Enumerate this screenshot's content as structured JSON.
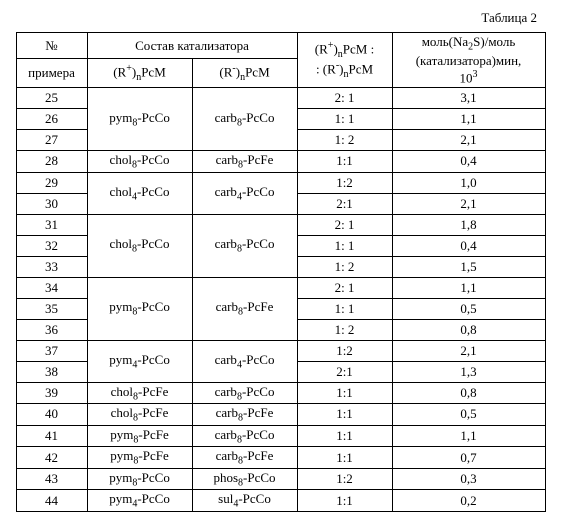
{
  "caption": "Таблица 2",
  "header": {
    "num_top": "№",
    "num_bottom": "примера",
    "composition": "Состав катализатора",
    "r_plus": "(R⁺)ₙPcM",
    "r_minus": "(R⁻)ₙPcM",
    "ratio_top": "(R⁺)ₙPcM :",
    "ratio_bottom": ": (R⁻)ₙPcM",
    "mol_top": "моль(Na₂S)/моль",
    "mol_mid": "(катализатора)мин,",
    "mol_bot": "10³"
  },
  "groups": [
    {
      "rPlus": "pym₈-PcCo",
      "rMinus": "carb₈-PcCo",
      "rows": [
        {
          "n": "25",
          "ratio": "2: 1",
          "mol": "3,1"
        },
        {
          "n": "26",
          "ratio": "1: 1",
          "mol": "1,1"
        },
        {
          "n": "27",
          "ratio": "1: 2",
          "mol": "2,1"
        }
      ]
    },
    {
      "rPlus": "chol₈-PcCo",
      "rMinus": "carb₈-PcFe",
      "rows": [
        {
          "n": "28",
          "ratio": "1:1",
          "mol": "0,4"
        }
      ]
    },
    {
      "rPlus": "chol₄-PcCo",
      "rMinus": "carb₄-PcCo",
      "rows": [
        {
          "n": "29",
          "ratio": "1:2",
          "mol": "1,0"
        },
        {
          "n": "30",
          "ratio": "2:1",
          "mol": "2,1"
        }
      ]
    },
    {
      "rPlus": "chol₈-PcCo",
      "rMinus": "carb₈-PcCo",
      "rows": [
        {
          "n": "31",
          "ratio": "2: 1",
          "mol": "1,8"
        },
        {
          "n": "32",
          "ratio": "1: 1",
          "mol": "0,4"
        },
        {
          "n": "33",
          "ratio": "1: 2",
          "mol": "1,5"
        }
      ]
    },
    {
      "rPlus": "pym₈-PcCo",
      "rMinus": "carb₈-PcFe",
      "rows": [
        {
          "n": "34",
          "ratio": "2: 1",
          "mol": "1,1"
        },
        {
          "n": "35",
          "ratio": "1: 1",
          "mol": "0,5"
        },
        {
          "n": "36",
          "ratio": "1: 2",
          "mol": "0,8"
        }
      ]
    },
    {
      "rPlus": "pym₄-PcCo",
      "rMinus": "carb₄-PcCo",
      "rows": [
        {
          "n": "37",
          "ratio": "1:2",
          "mol": "2,1"
        },
        {
          "n": "38",
          "ratio": "2:1",
          "mol": "1,3"
        }
      ]
    },
    {
      "rPlus": "chol₈-PcFe",
      "rMinus": "carb₈-PcCo",
      "rows": [
        {
          "n": "39",
          "ratio": "1:1",
          "mol": "0,8"
        }
      ]
    },
    {
      "rPlus": "chol₈-PcFe",
      "rMinus": "carb₈-PcFe",
      "rows": [
        {
          "n": "40",
          "ratio": "1:1",
          "mol": "0,5"
        }
      ]
    },
    {
      "rPlus": "pym₈-PcFe",
      "rMinus": "carb₈-PcCo",
      "rows": [
        {
          "n": "41",
          "ratio": "1:1",
          "mol": "1,1"
        }
      ]
    },
    {
      "rPlus": "pym₈-PcFe",
      "rMinus": "carb₈-PcFe",
      "rows": [
        {
          "n": "42",
          "ratio": "1:1",
          "mol": "0,7"
        }
      ]
    },
    {
      "rPlus": "pym₈-PcCo",
      "rMinus": "phos₈-PcCo",
      "rows": [
        {
          "n": "43",
          "ratio": "1:2",
          "mol": "0,3"
        }
      ]
    },
    {
      "rPlus": "pym₄-PcCo",
      "rMinus": "sul₄-PcCo",
      "rows": [
        {
          "n": "44",
          "ratio": "1:1",
          "mol": "0,2"
        }
      ]
    }
  ]
}
